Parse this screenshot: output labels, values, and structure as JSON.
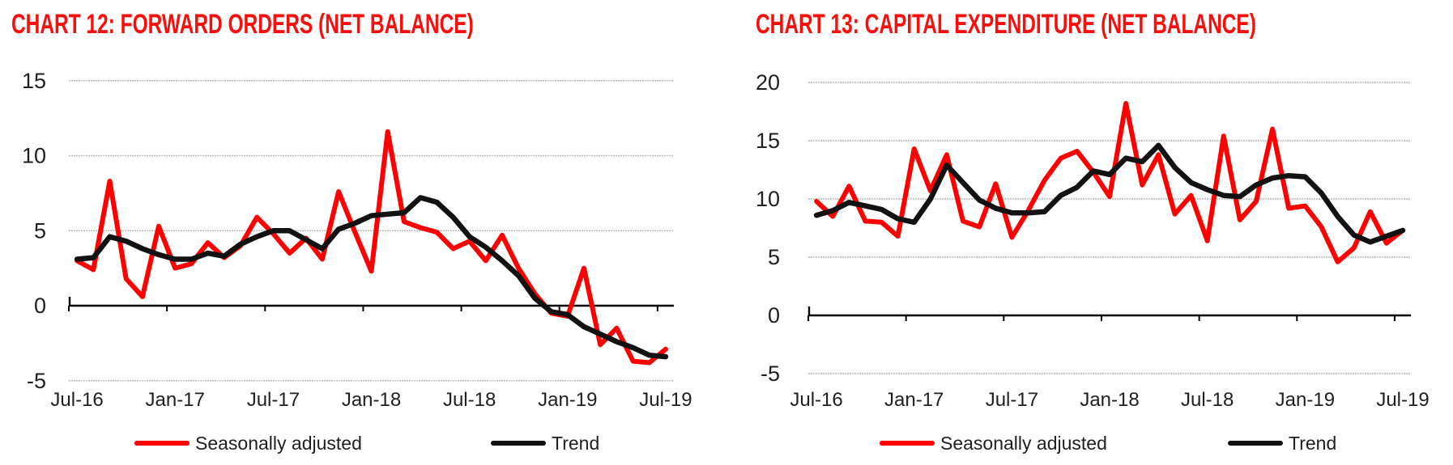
{
  "charts": [
    {
      "title": "CHART 12: FORWARD ORDERS (NET BALANCE)",
      "chart_data": {
        "type": "line",
        "x_monthly_range": "Jul-2016 to Jul-2019",
        "x_tick_labels": [
          "Jul-16",
          "Jan-17",
          "Jul-17",
          "Jan-18",
          "Jul-18",
          "Jan-19",
          "Jul-19"
        ],
        "ylim": [
          -5,
          15
        ],
        "yticks": [
          15,
          10,
          5,
          0,
          -5
        ],
        "grid": "horizontal",
        "legend_position": "bottom",
        "series": [
          {
            "name": "Seasonally adjusted",
            "color": "#FF0000",
            "values": [
              3.0,
              2.4,
              8.3,
              1.8,
              0.6,
              5.3,
              2.5,
              2.8,
              4.2,
              3.2,
              4.0,
              5.9,
              4.8,
              3.5,
              4.5,
              3.1,
              7.6,
              4.9,
              2.3,
              11.6,
              5.6,
              5.2,
              4.9,
              3.8,
              4.3,
              3.0,
              4.7,
              2.5,
              0.8,
              -0.5,
              -0.7,
              2.5,
              -2.6,
              -1.5,
              -3.7,
              -3.8,
              -2.9
            ]
          },
          {
            "name": "Trend",
            "color": "#121212",
            "values": [
              3.1,
              3.2,
              4.6,
              4.3,
              3.8,
              3.4,
              3.1,
              3.1,
              3.5,
              3.3,
              4.1,
              4.6,
              5.0,
              5.0,
              4.4,
              3.8,
              5.1,
              5.5,
              6.0,
              6.1,
              6.2,
              7.2,
              6.9,
              5.9,
              4.6,
              3.9,
              3.0,
              2.0,
              0.5,
              -0.4,
              -0.6,
              -1.4,
              -1.9,
              -2.4,
              -2.8,
              -3.3,
              -3.4
            ]
          }
        ]
      }
    },
    {
      "title": "CHART 13: CAPITAL EXPENDITURE (NET BALANCE)",
      "chart_data": {
        "type": "line",
        "x_monthly_range": "Jul-2016 to Jul-2019",
        "x_tick_labels": [
          "Jul-16",
          "Jan-17",
          "Jul-17",
          "Jan-18",
          "Jul-18",
          "Jan-19",
          "Jul-19"
        ],
        "ylim": [
          -5,
          20
        ],
        "yticks": [
          20,
          15,
          10,
          5,
          0,
          -5
        ],
        "grid": "horizontal",
        "legend_position": "bottom",
        "series": [
          {
            "name": "Seasonally adjusted",
            "color": "#FF0000",
            "values": [
              9.8,
              8.5,
              11.1,
              8.1,
              8.0,
              6.8,
              14.3,
              10.7,
              13.8,
              8.1,
              7.6,
              11.3,
              6.7,
              9.0,
              11.6,
              13.5,
              14.1,
              12.3,
              10.2,
              18.2,
              11.2,
              13.8,
              8.7,
              10.3,
              6.4,
              15.4,
              8.2,
              9.8,
              16.0,
              9.2,
              9.4,
              7.6,
              4.6,
              5.8,
              8.9,
              6.2,
              7.3
            ]
          },
          {
            "name": "Trend",
            "color": "#121212",
            "values": [
              8.6,
              9.0,
              9.7,
              9.4,
              9.1,
              8.3,
              8.0,
              10.0,
              12.9,
              11.4,
              9.9,
              9.2,
              8.8,
              8.8,
              8.9,
              10.3,
              11.0,
              12.4,
              12.1,
              13.5,
              13.2,
              14.6,
              12.7,
              11.4,
              10.8,
              10.3,
              10.2,
              11.2,
              11.8,
              12.0,
              11.9,
              10.5,
              8.5,
              6.9,
              6.3,
              6.8,
              7.3
            ]
          }
        ]
      }
    }
  ],
  "colors": {
    "title_red": "#FB0D0B",
    "series_red": "#FF0000",
    "series_black": "#121212",
    "gridline_gray": "#b9b9b9",
    "axis_black": "#000000",
    "label_gray": "#1f1f1f"
  }
}
